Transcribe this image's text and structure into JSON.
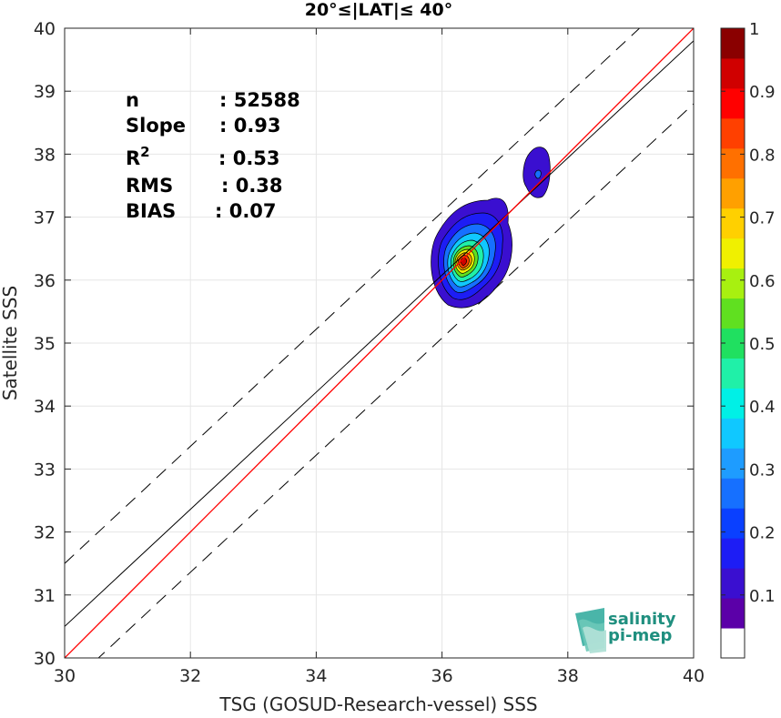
{
  "chart_data": {
    "type": "scatter",
    "subtype": "density-contour",
    "title": "20°≤|LAT|≤ 40°",
    "xlabel": "TSG (GOSUD-Research-vessel) SSS",
    "ylabel": "Satellite SSS",
    "xlim": [
      30,
      40
    ],
    "ylim": [
      30,
      40
    ],
    "xticks": [
      30,
      32,
      34,
      36,
      38,
      40
    ],
    "yticks": [
      30,
      31,
      32,
      33,
      34,
      35,
      36,
      37,
      38,
      39,
      40
    ],
    "grid": true,
    "stats": [
      {
        "label": "n",
        "value": ": 52588"
      },
      {
        "label": "Slope",
        "value": ": 0.93"
      },
      {
        "label": "R",
        "sup": "2",
        "value": ": 0.53"
      },
      {
        "label": "RMS",
        "value": ": 0.38"
      },
      {
        "label": "BIAS",
        "value": ": 0.07"
      }
    ],
    "lines": {
      "identity": {
        "color": "#ff0000",
        "from": [
          30,
          30
        ],
        "to": [
          40,
          40
        ]
      },
      "fit": {
        "color": "#000000",
        "slope": 0.93,
        "intercept": 2.6
      },
      "fit_upper": {
        "dash": true,
        "slope": 0.93,
        "intercept": 3.6
      },
      "fit_lower": {
        "dash": true,
        "slope": 0.93,
        "intercept": 1.6
      }
    },
    "density_peak": {
      "x": 36.35,
      "y": 36.35
    },
    "secondary_cluster": {
      "x": 37.55,
      "y": 37.65
    },
    "colorbar": {
      "min": 0,
      "max": 1,
      "ticks": [
        "0.1",
        "0.2",
        "0.3",
        "0.4",
        "0.5",
        "0.6",
        "0.7",
        "0.8",
        "0.9",
        "1"
      ],
      "tick_values": [
        0.1,
        0.2,
        0.3,
        0.4,
        0.5,
        0.6,
        0.7,
        0.8,
        0.9,
        1.0
      ],
      "colors": [
        "#ffffff",
        "#5b00a8",
        "#3a0fd0",
        "#1d1df5",
        "#0a40ff",
        "#1670ff",
        "#1e9cff",
        "#10c8ff",
        "#00f0e6",
        "#20f0a8",
        "#20e060",
        "#60e020",
        "#a8f010",
        "#f0f000",
        "#ffd000",
        "#ffa000",
        "#ff7000",
        "#ff4000",
        "#ff0000",
        "#d00000",
        "#8a0000"
      ]
    }
  },
  "logo": {
    "line1": "salinity",
    "line2": "pi-mep"
  }
}
